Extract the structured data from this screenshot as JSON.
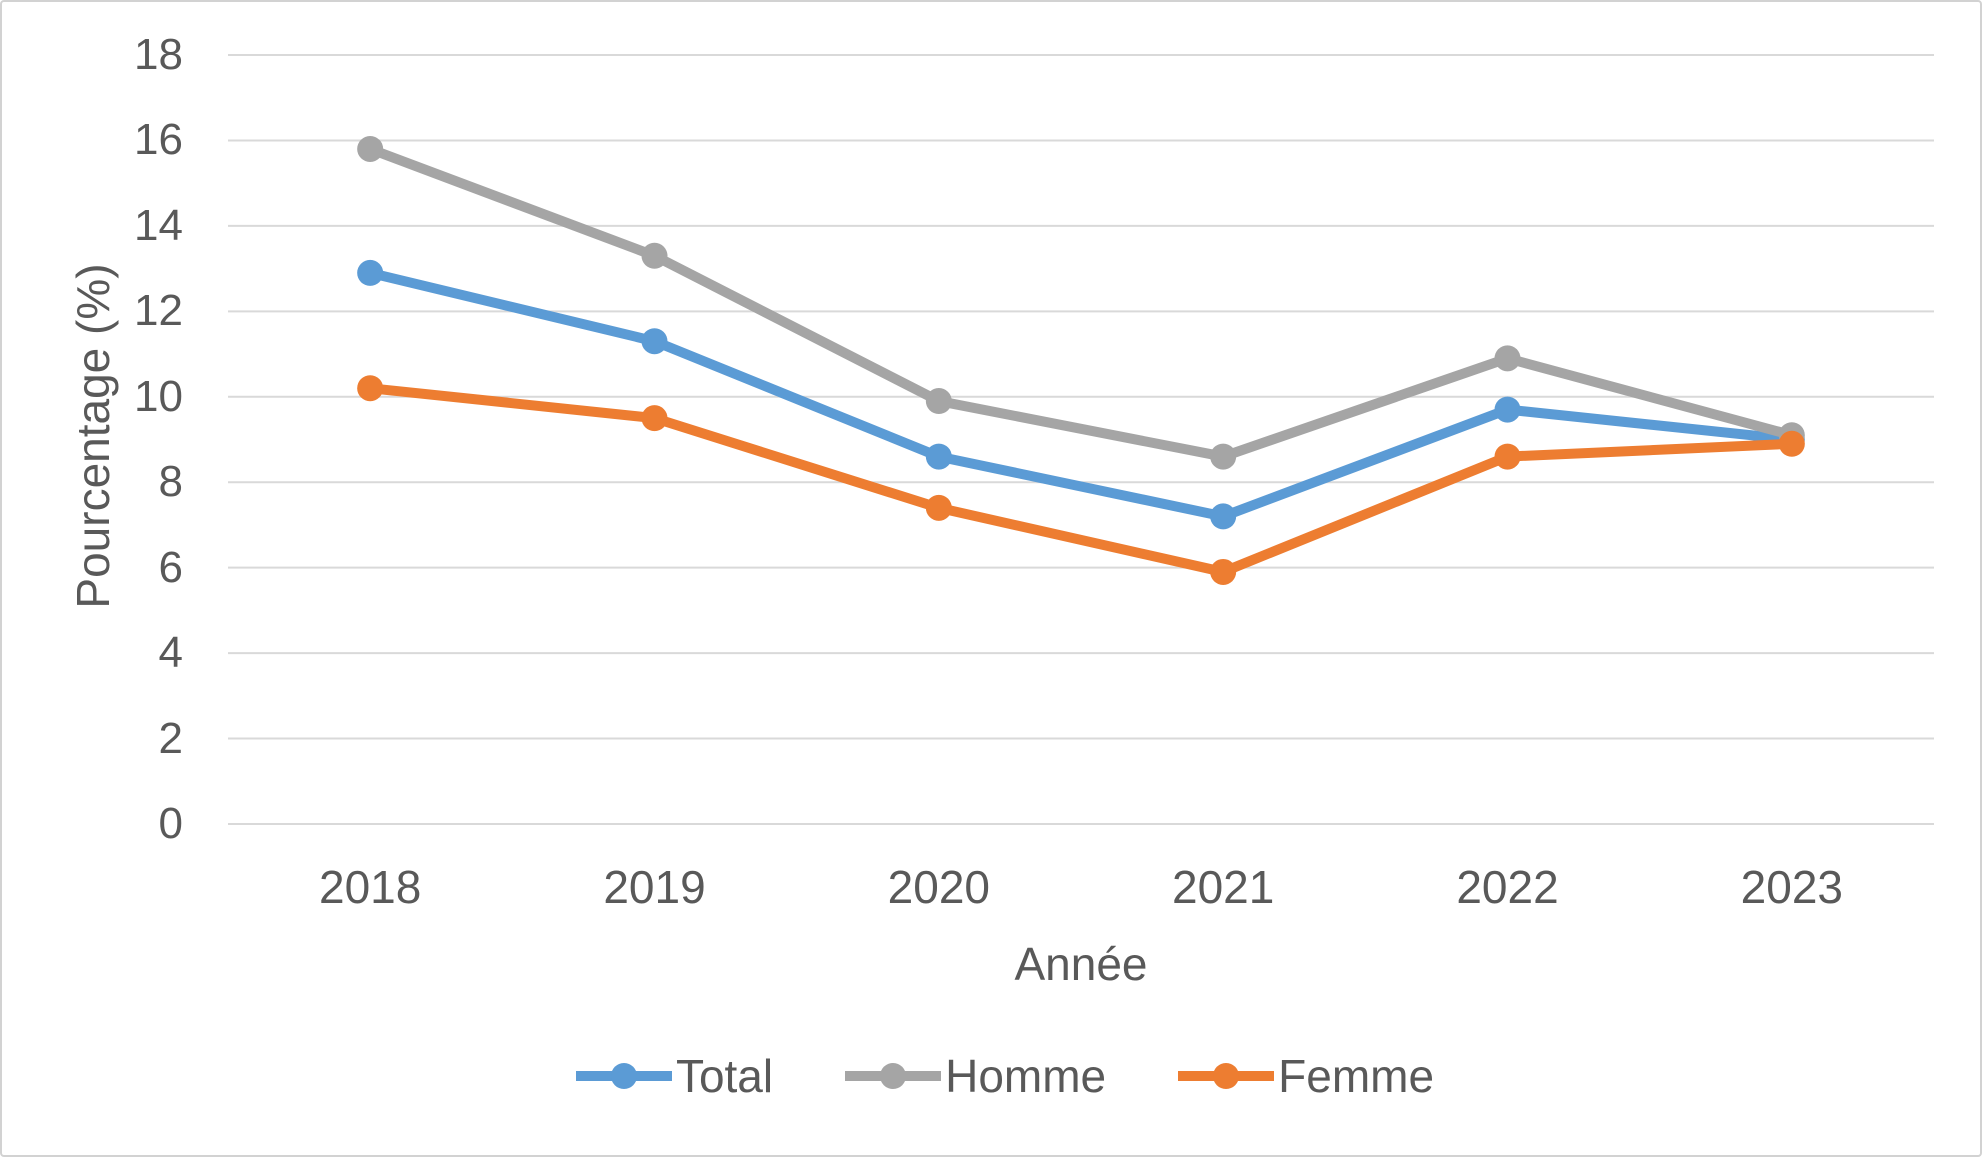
{
  "chart_data": {
    "type": "line",
    "title": "",
    "xlabel": "Année",
    "ylabel": "Pourcentage (%)",
    "categories": [
      "2018",
      "2019",
      "2020",
      "2021",
      "2022",
      "2023"
    ],
    "series": [
      {
        "name": "Total",
        "color": "#5B9BD5",
        "values": [
          12.9,
          11.3,
          8.6,
          7.2,
          9.7,
          9.0
        ]
      },
      {
        "name": "Homme",
        "color": "#A5A5A5",
        "values": [
          15.8,
          13.3,
          9.9,
          8.6,
          10.9,
          9.1
        ]
      },
      {
        "name": "Femme",
        "color": "#ED7D31",
        "values": [
          10.2,
          9.5,
          7.4,
          5.9,
          8.6,
          8.9
        ]
      }
    ],
    "ylim": [
      0,
      18
    ],
    "ytick_step": 2,
    "yticks": [
      "0",
      "2",
      "4",
      "6",
      "8",
      "10",
      "12",
      "14",
      "16",
      "18"
    ],
    "grid": "horizontal-only",
    "legend_position": "bottom-center",
    "marker": "circle"
  },
  "styles": {
    "text_color": "#595959",
    "gridline_color": "#D9D9D9",
    "frame_border_color": "#D2D2D2",
    "background": "#FFFFFF"
  }
}
